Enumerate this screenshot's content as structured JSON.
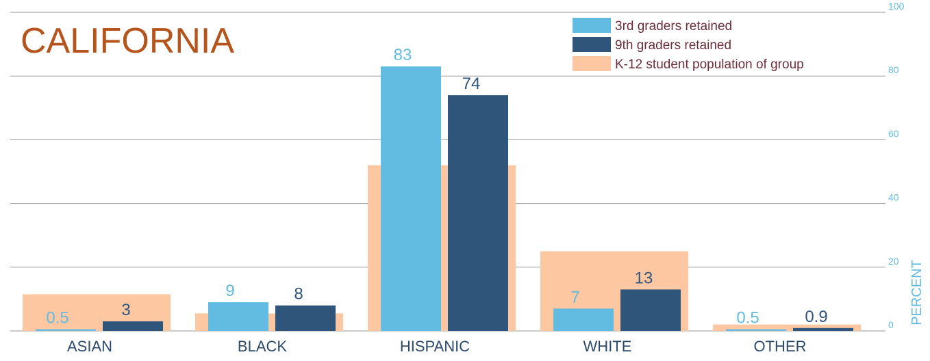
{
  "chart_data": {
    "type": "bar",
    "title": "CALIFORNIA",
    "ylabel": "PERCENT",
    "ylim": [
      0,
      100
    ],
    "yticks": [
      0,
      20,
      40,
      60,
      80,
      100
    ],
    "grid": true,
    "legend_position": "top-right",
    "categories": [
      "ASIAN",
      "BLACK",
      "HISPANIC",
      "WHITE",
      "OTHER"
    ],
    "series": [
      {
        "name": "3rd graders retained",
        "values": [
          0.5,
          9,
          83,
          7,
          0.5
        ],
        "labels": [
          "0.5",
          "9",
          "83",
          "7",
          "0.5"
        ],
        "color": "#62bce1"
      },
      {
        "name": "9th graders retained",
        "values": [
          3,
          8,
          74,
          13,
          0.9
        ],
        "labels": [
          "3",
          "8",
          "74",
          "13",
          "0.9"
        ],
        "color": "#30557a"
      },
      {
        "name": "K-12 student population of group",
        "values": [
          11.5,
          5.5,
          52,
          25,
          2
        ],
        "color": "#fdc8a1"
      }
    ],
    "colors": {
      "title": "#b5541c",
      "axis": "#62bce1",
      "grid": "#9a9a9a",
      "category": "#2e4a6b"
    }
  }
}
